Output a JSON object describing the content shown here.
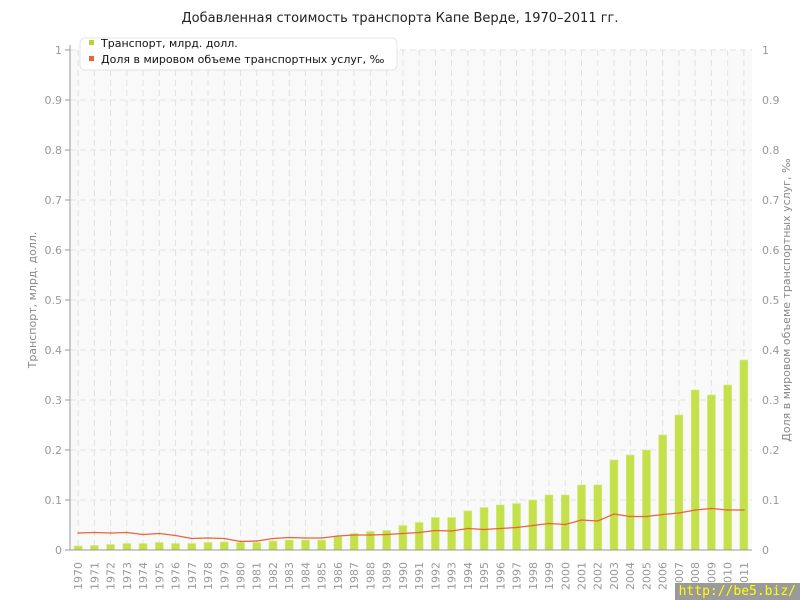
{
  "chart_data": {
    "type": "bar+line",
    "title": "Добавленная стоимость транспорта Капе Верде, 1970–2011 гг.",
    "ylabel": "Транспорт, млрд. долл.",
    "ylabel_right": "Доля в мировом объеме транспортных услуг, ‰",
    "ylim": [
      0,
      1
    ],
    "ylim_right": [
      0,
      1
    ],
    "yticks": [
      "0",
      "0.1",
      "0.2",
      "0.3",
      "0.4",
      "0.5",
      "0.6",
      "0.7",
      "0.8",
      "0.9",
      "1"
    ],
    "grid": true,
    "legend_position": "top-left",
    "categories": [
      "1970",
      "1971",
      "1972",
      "1973",
      "1974",
      "1975",
      "1976",
      "1977",
      "1978",
      "1979",
      "1980",
      "1981",
      "1982",
      "1983",
      "1984",
      "1985",
      "1986",
      "1987",
      "1988",
      "1989",
      "1990",
      "1991",
      "1992",
      "1993",
      "1994",
      "1995",
      "1996",
      "1997",
      "1998",
      "1999",
      "2000",
      "2001",
      "2002",
      "2003",
      "2004",
      "2005",
      "2006",
      "2007",
      "2008",
      "2009",
      "2010",
      "2011"
    ],
    "series": [
      {
        "name": "Транспорт, млрд. долл.",
        "type": "bar",
        "axis": "left",
        "color": "#c4e04a",
        "values": [
          0.008,
          0.009,
          0.011,
          0.013,
          0.013,
          0.015,
          0.013,
          0.013,
          0.015,
          0.016,
          0.015,
          0.015,
          0.018,
          0.02,
          0.02,
          0.02,
          0.027,
          0.033,
          0.037,
          0.039,
          0.049,
          0.055,
          0.065,
          0.065,
          0.078,
          0.085,
          0.09,
          0.093,
          0.1,
          0.11,
          0.11,
          0.13,
          0.13,
          0.18,
          0.19,
          0.2,
          0.23,
          0.27,
          0.32,
          0.31,
          0.33,
          0.38
        ]
      },
      {
        "name": "Доля в мировом объеме транспортных услуг, ‰",
        "type": "line",
        "axis": "right",
        "color": "#e8643c",
        "values": [
          0.034,
          0.035,
          0.034,
          0.035,
          0.031,
          0.033,
          0.029,
          0.023,
          0.024,
          0.023,
          0.017,
          0.018,
          0.023,
          0.025,
          0.024,
          0.024,
          0.028,
          0.03,
          0.03,
          0.031,
          0.033,
          0.035,
          0.039,
          0.038,
          0.043,
          0.041,
          0.043,
          0.045,
          0.049,
          0.053,
          0.051,
          0.06,
          0.058,
          0.072,
          0.067,
          0.067,
          0.071,
          0.074,
          0.08,
          0.083,
          0.08,
          0.08
        ]
      }
    ]
  },
  "watermark": "http://be5.biz/"
}
